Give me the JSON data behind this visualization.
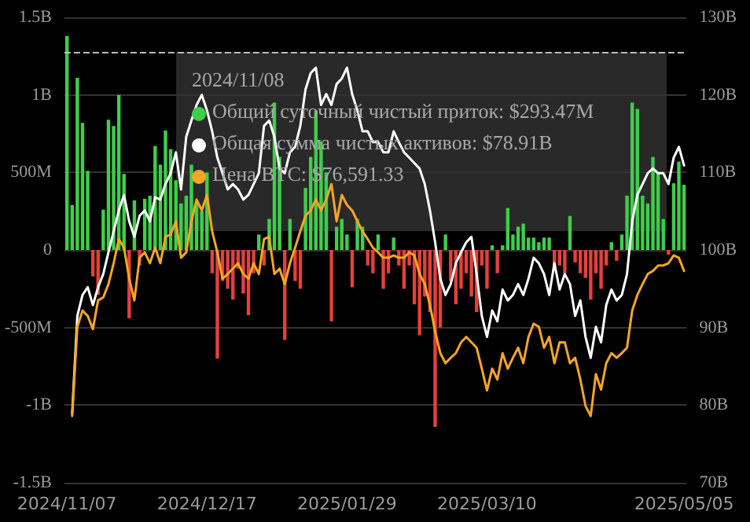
{
  "chart_data": {
    "type": "bar",
    "categories": [
      "2024/11/07",
      null,
      null,
      null,
      null,
      null,
      null,
      null,
      null,
      null,
      null,
      null,
      null,
      null,
      null,
      null,
      null,
      null,
      null,
      null,
      null,
      null,
      null,
      null,
      null,
      null,
      null,
      "2024/12/17",
      null,
      null,
      null,
      null,
      null,
      null,
      null,
      null,
      null,
      null,
      null,
      null,
      null,
      null,
      null,
      null,
      null,
      null,
      null,
      null,
      null,
      null,
      null,
      null,
      null,
      null,
      "2025/01/29",
      null,
      null,
      null,
      null,
      null,
      null,
      null,
      null,
      null,
      null,
      null,
      null,
      null,
      null,
      null,
      null,
      null,
      null,
      null,
      null,
      null,
      null,
      null,
      null,
      null,
      null,
      "2025/03/10",
      null,
      null,
      null,
      null,
      null,
      null,
      null,
      null,
      null,
      null,
      null,
      null,
      null,
      null,
      null,
      null,
      null,
      null,
      null,
      null,
      null,
      null,
      null,
      null,
      null,
      null,
      null,
      null,
      null,
      null,
      null,
      null,
      null,
      null,
      null,
      null,
      null,
      "2025/05/05"
    ],
    "series": [
      {
        "colors": [
          "#3ecf4a",
          "#3ecf4a",
          "#3ecf4a",
          "#3ecf4a",
          "#3ecf4a",
          "#e5403a",
          "#e5403a",
          "#3ecf4a",
          "#3ecf4a",
          "#3ecf4a",
          "#3ecf4a",
          "#3ecf4a",
          "#e5403a",
          "#3ecf4a",
          "#e5403a",
          "#3ecf4a",
          "#3ecf4a",
          "#3ecf4a",
          "#3ecf4a",
          "#3ecf4a",
          "#3ecf4a",
          "#3ecf4a",
          "#3ecf4a",
          "#3ecf4a",
          "#3ecf4a",
          "#3ecf4a",
          "#3ecf4a",
          "#3ecf4a",
          "#e5403a",
          "#e5403a",
          "#e5403a",
          "#e5403a",
          "#e5403a",
          "#e5403a",
          "#e5403a",
          "#e5403a",
          "#e5403a",
          "#3ecf4a",
          "#e5403a",
          "#3ecf4a",
          "#3ecf4a",
          "#3ecf4a",
          "#e5403a",
          "#3ecf4a",
          "#e5403a",
          "#e5403a",
          "#3ecf4a",
          "#3ecf4a",
          "#3ecf4a",
          "#3ecf4a",
          "#3ecf4a",
          "#e5403a",
          "#3ecf4a",
          "#3ecf4a",
          "#3ecf4a",
          "#e5403a",
          "#3ecf4a",
          "#3ecf4a",
          "#e5403a",
          "#e5403a",
          "#3ecf4a",
          "#e5403a",
          "#e5403a",
          "#3ecf4a",
          "#e5403a",
          "#e5403a",
          "#e5403a",
          "#e5403a",
          "#e5403a",
          "#e5403a",
          "#e5403a",
          "#e5403a",
          "#e5403a",
          "#3ecf4a",
          "#e5403a",
          "#e5403a",
          "#e5403a",
          "#e5403a",
          "#e5403a",
          "#e5403a",
          "#e5403a",
          "#e5403a",
          "#3ecf4a",
          "#e5403a",
          "#3ecf4a",
          "#3ecf4a",
          "#3ecf4a",
          "#3ecf4a",
          "#3ecf4a",
          "#3ecf4a",
          "#3ecf4a",
          "#3ecf4a",
          "#3ecf4a",
          "#3ecf4a",
          "#e5403a",
          "#e5403a",
          "#e5403a",
          "#3ecf4a",
          "#e5403a",
          "#e5403a",
          "#e5403a",
          "#e5403a",
          "#e5403a",
          "#e5403a",
          "#e5403a",
          "#3ecf4a",
          "#e5403a",
          "#3ecf4a",
          "#3ecf4a",
          "#3ecf4a",
          "#3ecf4a",
          "#3ecf4a",
          "#3ecf4a",
          "#3ecf4a",
          "#3ecf4a",
          "#3ecf4a",
          "#e5403a",
          "#3ecf4a",
          "#3ecf4a",
          "#3ecf4a"
        ],
        "values": [
          1380000000,
          290000000,
          1110000000,
          820000000,
          510000000,
          -170000000,
          -290000000,
          260000000,
          840000000,
          800000000,
          1000000000,
          490000000,
          -440000000,
          320000000,
          -100000000,
          330000000,
          350000000,
          670000000,
          550000000,
          770000000,
          650000000,
          450000000,
          300000000,
          350000000,
          550000000,
          300000000,
          250000000,
          500000000,
          -150000000,
          -700000000,
          -200000000,
          -250000000,
          -320000000,
          -120000000,
          -280000000,
          -420000000,
          -150000000,
          100000000,
          -100000000,
          200000000,
          950000000,
          600000000,
          -580000000,
          200000000,
          -200000000,
          -250000000,
          400000000,
          600000000,
          900000000,
          700000000,
          500000000,
          -460000000,
          150000000,
          200000000,
          100000000,
          -240000000,
          200000000,
          150000000,
          -100000000,
          -150000000,
          100000000,
          -250000000,
          -150000000,
          80000000,
          -100000000,
          -250000000,
          -100000000,
          -350000000,
          -550000000,
          -300000000,
          -400000000,
          -1140000000,
          -500000000,
          100000000,
          -200000000,
          -350000000,
          -250000000,
          -150000000,
          -300000000,
          -400000000,
          -100000000,
          -250000000,
          30000000,
          -150000000,
          30000000,
          270000000,
          100000000,
          150000000,
          170000000,
          80000000,
          80000000,
          50000000,
          80000000,
          80000000,
          -100000000,
          -100000000,
          -150000000,
          220000000,
          -80000000,
          -150000000,
          -180000000,
          -320000000,
          -150000000,
          -250000000,
          -100000000,
          50000000,
          -70000000,
          100000000,
          350000000,
          950000000,
          910000000,
          350000000,
          300000000,
          600000000,
          500000000,
          200000000,
          -30000000,
          430000000,
          570000000,
          420000000
        ]
      },
      {
        "type": "line",
        "axis": "y2",
        "color": "#ffffff",
        "values": [
          null,
          78.9,
          91.5,
          94.2,
          95.2,
          92.9,
          95.2,
          96.9,
          99.7,
          102.4,
          105.1,
          107.1,
          103.7,
          101.7,
          104.4,
          105.1,
          103.7,
          106.8,
          106.5,
          108.5,
          109.9,
          112.6,
          107.8,
          114.6,
          116.7,
          118.7,
          120,
          118,
          115.3,
          111.9,
          109.9,
          107.8,
          108.5,
          107.8,
          106.5,
          107.1,
          108.5,
          109.9,
          116,
          116.7,
          114.6,
          110.5,
          109.9,
          112.6,
          113.3,
          116,
          120.7,
          122.8,
          123.5,
          118.7,
          120.1,
          118.7,
          121.4,
          122.1,
          123.5,
          120.1,
          118,
          115.3,
          115.3,
          113.9,
          113.9,
          112.6,
          112.6,
          115.3,
          113.9,
          112.6,
          111.9,
          111.2,
          110.5,
          108.5,
          105.1,
          101,
          96.3,
          94.2,
          95.6,
          98.3,
          99.7,
          101,
          101.7,
          96.9,
          91.5,
          88.8,
          92.2,
          90.8,
          94.9,
          93.5,
          94.2,
          95.6,
          94.2,
          96.3,
          99,
          98.3,
          96.9,
          94.2,
          98.3,
          94.9,
          96.9,
          95.6,
          91.5,
          93.5,
          88.8,
          86.1,
          90.1,
          88.1,
          92.9,
          94.9,
          93.5,
          94.2,
          96.9,
          103.7,
          107.1,
          108.5,
          109.9,
          110.5,
          109.9,
          109.9,
          108.5,
          111.9,
          113.3,
          110.9
        ]
      },
      {
        "type": "line",
        "axis": "y2",
        "color": "#f5a623",
        "values": [
          null,
          78.6,
          90.1,
          92.2,
          91.5,
          89.8,
          93.5,
          93.9,
          95.6,
          98.3,
          101.4,
          100.3,
          96.3,
          93.5,
          99,
          99.7,
          98.3,
          100.3,
          98.3,
          101.7,
          102,
          103.7,
          99,
          99.7,
          103.7,
          106.5,
          105.1,
          107.1,
          102.4,
          99.7,
          96.3,
          96.9,
          97.6,
          98.3,
          96.9,
          96.3,
          98.3,
          96.9,
          101.4,
          101.7,
          96.9,
          97.6,
          95.6,
          98.3,
          100.3,
          102.4,
          104.4,
          105.1,
          106.5,
          105.1,
          106.5,
          108.5,
          103.7,
          107.1,
          105.8,
          105.1,
          103.7,
          102.4,
          101.4,
          100.3,
          99.7,
          99,
          99,
          99.3,
          99,
          99,
          99.7,
          99.3,
          96.9,
          95.6,
          92.9,
          89.5,
          86.7,
          85.4,
          86.1,
          86.7,
          88.1,
          88.8,
          88.1,
          87.4,
          84.7,
          81.9,
          84.7,
          83.3,
          86.7,
          84.7,
          86.1,
          87.4,
          85.4,
          88.8,
          90.5,
          90.1,
          87.4,
          88.8,
          85.4,
          88.1,
          88.1,
          85.4,
          86.1,
          83.3,
          79.9,
          78.6,
          84,
          82,
          85.4,
          86.7,
          86.1,
          86.7,
          87.4,
          92.2,
          94.2,
          95.6,
          96.9,
          97.3,
          98,
          98,
          98.3,
          99.3,
          99,
          97.3
        ]
      }
    ],
    "ylim": [
      -1500000000,
      1500000000
    ],
    "yticks": [
      {
        "value": -1500000000,
        "label": "-1.5B"
      },
      {
        "value": -1000000000,
        "label": "-1B"
      },
      {
        "value": -500000000,
        "label": "-500M"
      },
      0,
      {
        "value": 500000000,
        "label": "500M"
      },
      {
        "value": 1000000000,
        "label": "1B"
      },
      {
        "value": 1500000000,
        "label": "1.5B"
      }
    ],
    "y2lim": [
      70,
      130
    ],
    "y2ticks": [
      {
        "value": 70,
        "label": "70B"
      },
      {
        "value": 80,
        "label": "80B"
      },
      {
        "value": 90,
        "label": "90B"
      },
      {
        "value": 100,
        "label": "100B"
      },
      {
        "value": 110,
        "label": "110B"
      },
      {
        "value": 120,
        "label": "120B"
      },
      {
        "value": 130,
        "label": "130B"
      }
    ],
    "ref_lines": [
      {
        "axis": "y",
        "value": 1270000000,
        "color": "#bbbbbb",
        "line_style": "dashed"
      }
    ],
    "annotations": [
      "2024/11/08",
      "Общий суточный чистый приток: $293.47M",
      "Общая сумма чистых активов: $78.91B",
      "Цена BTC: $76,591.33"
    ],
    "grid": "y",
    "marker": "none",
    "line_style": "solid"
  }
}
